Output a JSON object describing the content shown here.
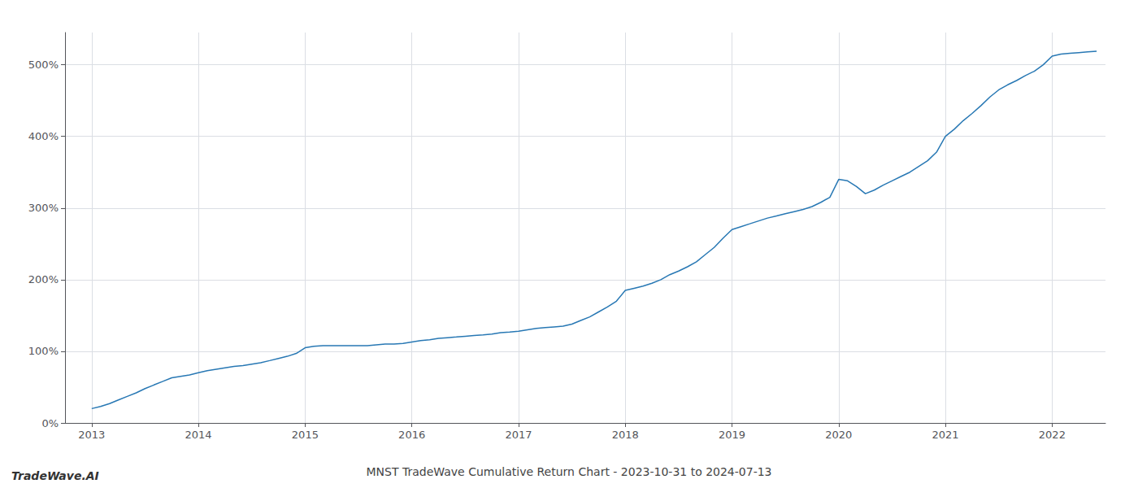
{
  "chart_data": {
    "type": "line",
    "title": "MNST TradeWave Cumulative Return Chart - 2023-10-31 to 2024-07-13",
    "annotations": [
      "TradeWave.AI"
    ],
    "x": [
      2013.0,
      2013.083,
      2013.167,
      2013.25,
      2013.333,
      2013.417,
      2013.5,
      2013.583,
      2013.667,
      2013.75,
      2013.833,
      2013.917,
      2014.0,
      2014.083,
      2014.167,
      2014.25,
      2014.333,
      2014.417,
      2014.5,
      2014.583,
      2014.667,
      2014.75,
      2014.833,
      2014.917,
      2015.0,
      2015.083,
      2015.167,
      2015.25,
      2015.333,
      2015.417,
      2015.5,
      2015.583,
      2015.667,
      2015.75,
      2015.833,
      2015.917,
      2016.0,
      2016.083,
      2016.167,
      2016.25,
      2016.333,
      2016.417,
      2016.5,
      2016.583,
      2016.667,
      2016.75,
      2016.833,
      2016.917,
      2017.0,
      2017.083,
      2017.167,
      2017.25,
      2017.333,
      2017.417,
      2017.5,
      2017.583,
      2017.667,
      2017.75,
      2017.833,
      2017.917,
      2018.0,
      2018.083,
      2018.167,
      2018.25,
      2018.333,
      2018.417,
      2018.5,
      2018.583,
      2018.667,
      2018.75,
      2018.833,
      2018.917,
      2019.0,
      2019.083,
      2019.167,
      2019.25,
      2019.333,
      2019.417,
      2019.5,
      2019.583,
      2019.667,
      2019.75,
      2019.833,
      2019.917,
      2020.0,
      2020.083,
      2020.167,
      2020.25,
      2020.333,
      2020.417,
      2020.5,
      2020.583,
      2020.667,
      2020.75,
      2020.833,
      2020.917,
      2021.0,
      2021.083,
      2021.167,
      2021.25,
      2021.333,
      2021.417,
      2021.5,
      2021.583,
      2021.667,
      2021.75,
      2021.833,
      2021.917,
      2022.0,
      2022.083,
      2022.167,
      2022.25,
      2022.333,
      2022.417
    ],
    "values": [
      20,
      23,
      27,
      32,
      37,
      42,
      48,
      53,
      58,
      63,
      65,
      67,
      70,
      73,
      75,
      77,
      79,
      80,
      82,
      84,
      87,
      90,
      93,
      97,
      105,
      107,
      108,
      108,
      108,
      108,
      108,
      108,
      109,
      110,
      110,
      111,
      113,
      115,
      116,
      118,
      119,
      120,
      121,
      122,
      123,
      124,
      126,
      127,
      128,
      130,
      132,
      133,
      134,
      135,
      138,
      143,
      148,
      155,
      162,
      170,
      185,
      188,
      191,
      195,
      200,
      207,
      212,
      218,
      225,
      235,
      245,
      258,
      270,
      274,
      278,
      282,
      286,
      289,
      292,
      295,
      298,
      302,
      308,
      315,
      340,
      338,
      330,
      320,
      325,
      332,
      338,
      344,
      350,
      358,
      366,
      378,
      400,
      410,
      422,
      432,
      443,
      455,
      465,
      472,
      478,
      485,
      491,
      500,
      512,
      515,
      516,
      517,
      518,
      519
    ],
    "color": "#2878b4",
    "xlim": [
      2012.75,
      2022.5
    ],
    "ylim": [
      0,
      545
    ],
    "xticks": [
      2013,
      2014,
      2015,
      2016,
      2017,
      2018,
      2019,
      2020,
      2021,
      2022
    ],
    "yticks": [
      {
        "value": 0,
        "label": "0%"
      },
      {
        "value": 100,
        "label": "100%"
      },
      {
        "value": 200,
        "label": "200%"
      },
      {
        "value": 300,
        "label": "300%"
      },
      {
        "value": 400,
        "label": "400%"
      },
      {
        "value": 500,
        "label": "500%"
      }
    ],
    "grid": true
  }
}
